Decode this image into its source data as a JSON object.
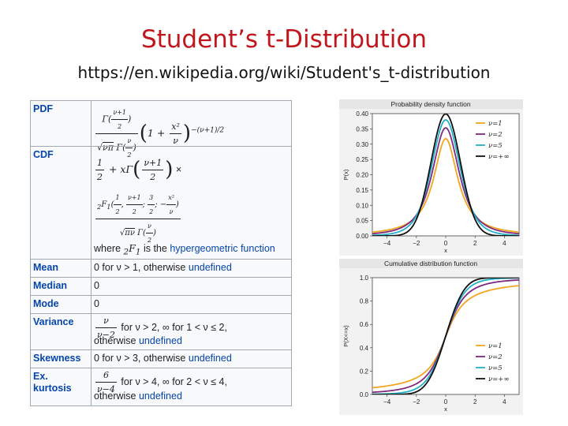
{
  "slide": {
    "title": "Student’s t-Distribution",
    "url": "https://en.wikipedia.org/wiki/Student's_t-distribution"
  },
  "infobox": {
    "pdf_label": "PDF",
    "cdf_label": "CDF",
    "cdf_note_prefix": "where",
    "cdf_note_suffix": "is the",
    "cdf_note_link": "hypergeometric function",
    "mean_label": "Mean",
    "mean_value": "0 for ν > 1, otherwise",
    "mean_link": "undefined",
    "median_label": "Median",
    "median_value": "0",
    "mode_label": "Mode",
    "mode_value": "0",
    "variance_label": "Variance",
    "variance_value": "for ν > 2, ∞ for 1 < ν ≤ 2,",
    "variance_value2": "otherwise",
    "variance_link": "undefined",
    "skewness_label": "Skewness",
    "skewness_value": "0 for ν > 3, otherwise",
    "skewness_link": "undefined",
    "kurtosis_label1": "Ex.",
    "kurtosis_label2": "kurtosis",
    "kurtosis_value": "for ν > 4, ∞ for 2 < ν ≤ 4,",
    "kurtosis_value2": "otherwise",
    "kurtosis_link": "undefined"
  },
  "chart_data": [
    {
      "type": "line",
      "title": "Probability density function",
      "xlabel": "x",
      "ylabel": "P(x)",
      "xlim": [
        -5,
        5
      ],
      "ylim": [
        0,
        0.4
      ],
      "x_ticks": [
        "−4",
        "−2",
        "0",
        "2",
        "4"
      ],
      "y_ticks": [
        "0.00",
        "0.05",
        "0.10",
        "0.15",
        "0.20",
        "0.25",
        "0.30",
        "0.35",
        "0.40"
      ],
      "legend_position": "right",
      "series": [
        {
          "name": "ν=1",
          "color": "#f2a51f",
          "values": [
            0.0122,
            0.0187,
            0.0318,
            0.0637,
            0.1592,
            0.3183,
            0.1592,
            0.0637,
            0.0318,
            0.0187,
            0.0122
          ]
        },
        {
          "name": "ν=2",
          "color": "#7e2a7e",
          "values": [
            0.0071,
            0.0131,
            0.0274,
            0.068,
            0.1925,
            0.3536,
            0.1925,
            0.068,
            0.0274,
            0.0131,
            0.0071
          ]
        },
        {
          "name": "ν=5",
          "color": "#23b0c8",
          "values": [
            0.0018,
            0.0051,
            0.0173,
            0.0651,
            0.2197,
            0.3796,
            0.2197,
            0.0651,
            0.0173,
            0.0051,
            0.0018
          ]
        },
        {
          "name": "ν=+∞",
          "color": "#111111",
          "values": [
            0.0,
            0.0001,
            0.0044,
            0.054,
            0.242,
            0.3989,
            0.242,
            0.054,
            0.0044,
            0.0001,
            0.0
          ]
        }
      ],
      "x": [
        -5,
        -4,
        -3,
        -2,
        -1,
        0,
        1,
        2,
        3,
        4,
        5
      ]
    },
    {
      "type": "line",
      "title": "Cumulative distribution function",
      "xlabel": "x",
      "ylabel": "P(X<=x)",
      "xlim": [
        -5,
        5
      ],
      "ylim": [
        0,
        1
      ],
      "x_ticks": [
        "−4",
        "−2",
        "0",
        "2",
        "4"
      ],
      "y_ticks": [
        "0.0",
        "0.2",
        "0.4",
        "0.6",
        "0.8",
        "1.0"
      ],
      "legend_position": "bottom-right",
      "series": [
        {
          "name": "ν=1",
          "color": "#f2a51f",
          "values": [
            0.063,
            0.078,
            0.102,
            0.148,
            0.25,
            0.5,
            0.75,
            0.852,
            0.898,
            0.922,
            0.937
          ]
        },
        {
          "name": "ν=2",
          "color": "#7e2a7e",
          "values": [
            0.019,
            0.029,
            0.048,
            0.092,
            0.211,
            0.5,
            0.789,
            0.908,
            0.952,
            0.971,
            0.981
          ]
        },
        {
          "name": "ν=5",
          "color": "#23b0c8",
          "values": [
            0.002,
            0.005,
            0.015,
            0.051,
            0.182,
            0.5,
            0.818,
            0.949,
            0.985,
            0.995,
            0.998
          ]
        },
        {
          "name": "ν=+∞",
          "color": "#111111",
          "values": [
            0.0,
            0.0,
            0.001,
            0.023,
            0.159,
            0.5,
            0.841,
            0.977,
            0.999,
            1.0,
            1.0
          ]
        }
      ],
      "x": [
        -5,
        -4,
        -3,
        -2,
        -1,
        0,
        1,
        2,
        3,
        4,
        5
      ]
    }
  ]
}
